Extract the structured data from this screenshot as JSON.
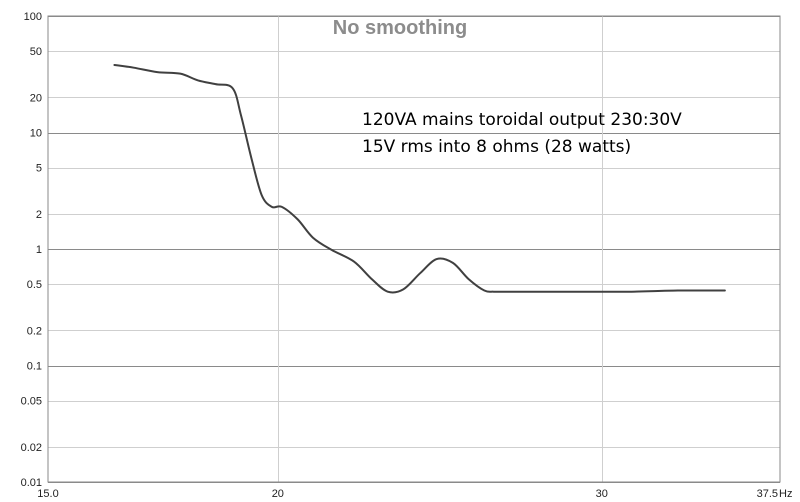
{
  "chart_data": {
    "type": "line",
    "title": "No smoothing",
    "annotations": [
      "120VA mains toroidal output 230:30V",
      "15V rms into 8 ohms (28 watts)"
    ],
    "x_unit": "Hz",
    "x_scale": "log",
    "y_scale": "log",
    "xlim": [
      15.0,
      37.5
    ],
    "ylim": [
      0.01,
      100
    ],
    "x_tick_labels": [
      {
        "value": 15.0,
        "label": "15.0"
      },
      {
        "value": 20,
        "label": "20"
      },
      {
        "value": 30,
        "label": "30"
      },
      {
        "value": 37.5,
        "label": "37.5"
      }
    ],
    "y_tick_labels": [
      {
        "value": 100,
        "label": "100"
      },
      {
        "value": 50,
        "label": "50"
      },
      {
        "value": 20,
        "label": "20"
      },
      {
        "value": 10,
        "label": "10"
      },
      {
        "value": 5,
        "label": "5"
      },
      {
        "value": 2,
        "label": "2"
      },
      {
        "value": 1,
        "label": "1"
      },
      {
        "value": 0.5,
        "label": "0.5"
      },
      {
        "value": 0.2,
        "label": "0.2"
      },
      {
        "value": 0.1,
        "label": "0.1"
      },
      {
        "value": 0.05,
        "label": "0.05"
      },
      {
        "value": 0.02,
        "label": "0.02"
      },
      {
        "value": 0.01,
        "label": "0.01"
      }
    ],
    "major_gridlines_y": [
      100,
      10,
      1,
      0.1,
      0.01
    ],
    "grid": true,
    "series": [
      {
        "color": "#404040",
        "x": [
          16.3,
          16.7,
          17.2,
          17.7,
          18.1,
          18.5,
          18.9,
          19.1,
          19.35,
          19.6,
          19.85,
          20.1,
          20.5,
          20.9,
          21.4,
          22.0,
          22.5,
          22.95,
          23.4,
          23.9,
          24.4,
          24.9,
          25.4,
          25.9,
          26.2,
          26.5,
          27.5,
          29.0,
          31.0,
          33.0,
          35.0
        ],
        "y": [
          38,
          36,
          33,
          32,
          28,
          26,
          24,
          14,
          6.0,
          2.9,
          2.3,
          2.3,
          1.8,
          1.25,
          0.98,
          0.78,
          0.55,
          0.43,
          0.45,
          0.62,
          0.82,
          0.76,
          0.55,
          0.44,
          0.43,
          0.43,
          0.43,
          0.43,
          0.43,
          0.44,
          0.44
        ]
      }
    ]
  },
  "colors": {
    "background": "#ffffff",
    "grid_minor": "#cfcfcf",
    "grid_major": "#8a8a8a",
    "line": "#404040",
    "title": "#8c8c8c"
  }
}
